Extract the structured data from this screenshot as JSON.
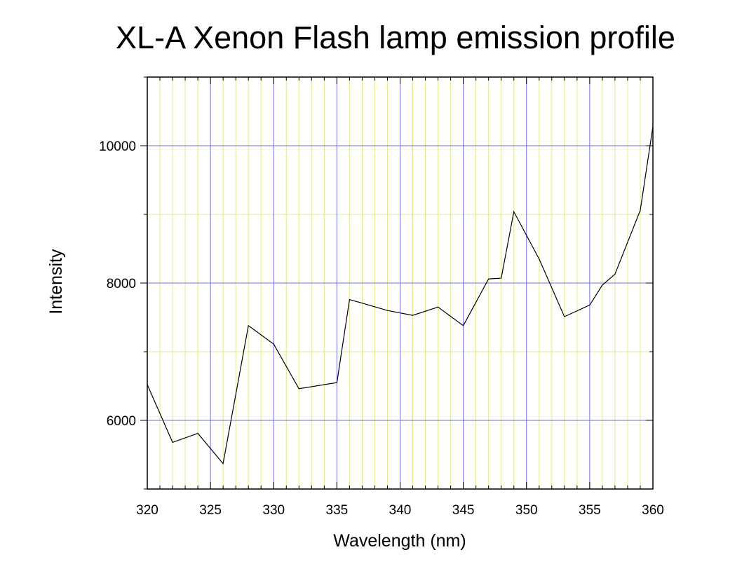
{
  "chart_data": {
    "type": "line",
    "title": "XL-A Xenon Flash lamp emission profile",
    "xlabel": "Wavelength (nm)",
    "ylabel": "Intensity",
    "xlim": [
      320,
      360
    ],
    "ylim": [
      5000,
      11000
    ],
    "x_ticks": [
      320,
      325,
      330,
      335,
      340,
      345,
      350,
      355,
      360
    ],
    "y_ticks": [
      6000,
      8000,
      10000
    ],
    "grid": true,
    "colors": {
      "major_grid": "#6f6fe6",
      "minor_grid": "#d4f08a",
      "line": "#000000"
    },
    "series": [
      {
        "x": [
          320,
          322,
          324,
          326,
          328,
          330,
          332,
          335,
          336,
          339,
          341,
          343,
          345,
          347,
          348,
          349,
          351,
          353,
          355,
          356,
          357,
          359,
          360
        ],
        "y": [
          6520,
          5680,
          5810,
          5370,
          7380,
          7110,
          6460,
          6550,
          7760,
          7600,
          7530,
          7650,
          7380,
          8060,
          8070,
          9040,
          8350,
          7510,
          7680,
          7970,
          8130,
          9060,
          10280
        ]
      }
    ]
  }
}
